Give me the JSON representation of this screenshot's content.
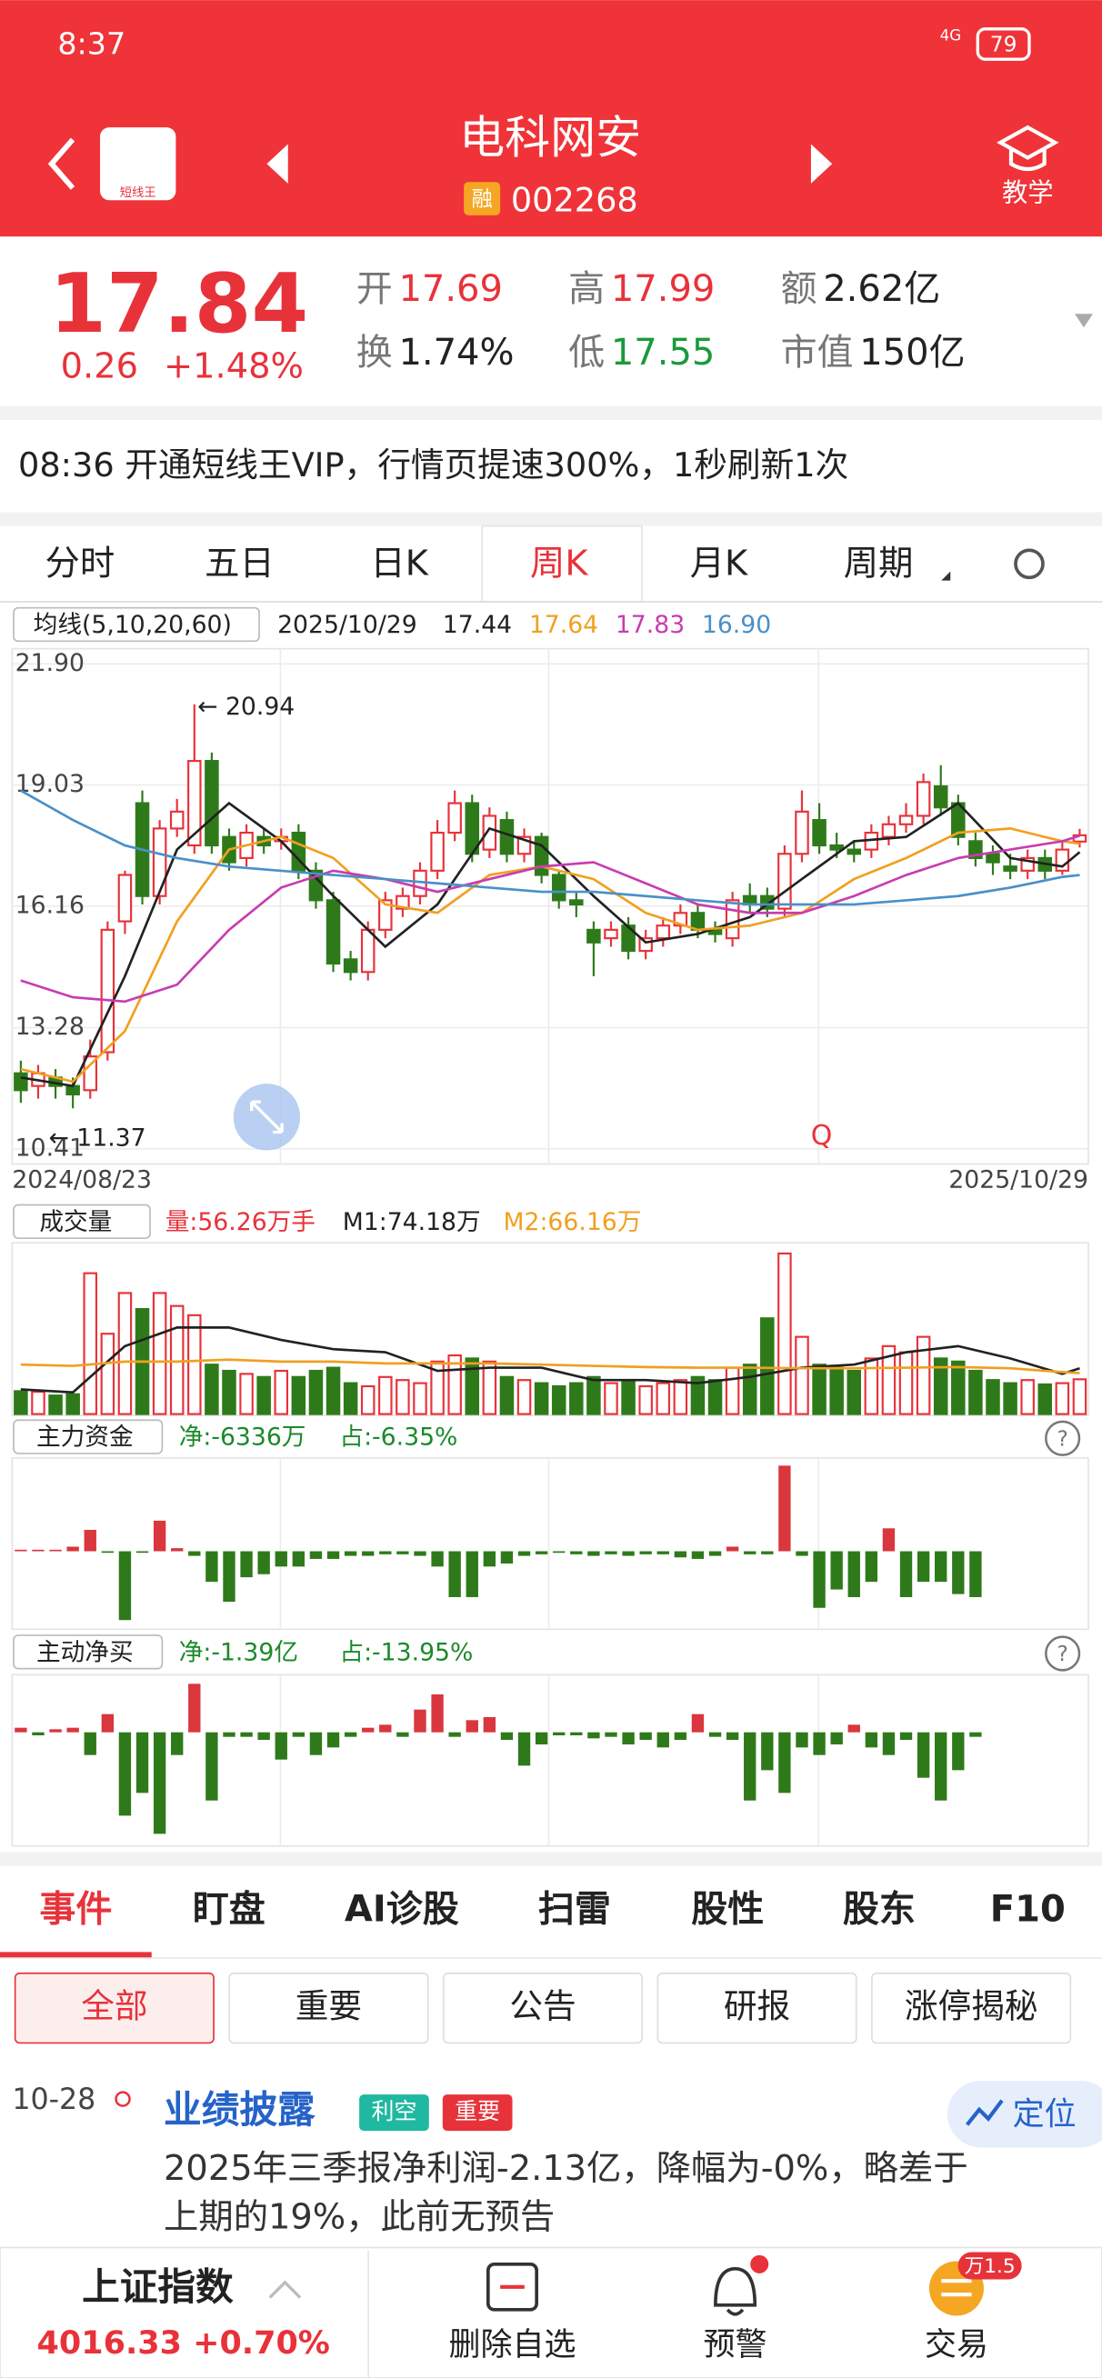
{
  "status_bar": {
    "time": "8:37",
    "network": "4G",
    "battery": "79"
  },
  "header": {
    "logo_text": "短线王",
    "title": "电科网安",
    "badge": "融",
    "code": "002268",
    "teach": "教学"
  },
  "quote": {
    "price": "17.84",
    "change": "0.26",
    "pct": "+1.48%",
    "fields": [
      {
        "label": "开",
        "value": "17.69",
        "color": "#e8323a"
      },
      {
        "label": "高",
        "value": "17.99",
        "color": "#e8323a"
      },
      {
        "label": "额",
        "value": "2.62亿",
        "color": "#222"
      },
      {
        "label": "换",
        "value": "1.74%",
        "color": "#222"
      },
      {
        "label": "低",
        "value": "17.55",
        "color": "#1a9a3a"
      },
      {
        "label": "市值",
        "value": "150亿",
        "color": "#222"
      }
    ]
  },
  "banner": "08:36 开通短线王VIP，行情页提速300%，1秒刷新1次",
  "chart_tabs": [
    "分时",
    "五日",
    "日K",
    "周K",
    "月K",
    "周期"
  ],
  "active_tab": 3,
  "kline": {
    "type": "candlestick",
    "ma_label": "均线(5,10,20,60)",
    "date": "2025/10/29",
    "ma_readout": [
      {
        "text": "17.44",
        "color": "#222"
      },
      {
        "text": "17.64",
        "color": "#f0a020"
      },
      {
        "text": "17.83",
        "color": "#c83cb0"
      },
      {
        "text": "16.90",
        "color": "#4a90c8"
      }
    ],
    "ylim": [
      10.41,
      21.9
    ],
    "yticks": [
      10.41,
      13.28,
      16.16,
      19.03,
      {
        "value": 21.9,
        "label": "21.90"
      }
    ],
    "x_start": "2024/08/23",
    "x_end": "2025/10/29",
    "high_label": "20.94",
    "high_index": 10,
    "low_label": "11.37",
    "low_index": 3,
    "marker": "Q",
    "open": [
      12.2,
      11.9,
      12.1,
      11.9,
      11.8,
      12.7,
      15.8,
      18.6,
      16.4,
      18.0,
      17.6,
      19.6,
      17.8,
      17.3,
      17.8,
      17.7,
      17.9,
      17.0,
      16.3,
      14.9,
      14.6,
      15.6,
      16.1,
      16.4,
      17.0,
      17.9,
      18.6,
      17.5,
      18.2,
      17.4,
      17.8,
      16.9,
      16.3,
      15.6,
      15.4,
      15.7,
      15.1,
      15.4,
      15.7,
      16.0,
      15.6,
      15.4,
      16.4,
      16.4,
      16.1,
      17.4,
      18.2,
      17.6,
      17.5,
      17.5,
      17.8,
      18.1,
      18.3,
      19.0,
      18.6,
      17.7,
      17.4,
      17.1,
      17.0,
      17.3,
      17.0,
      17.69
    ],
    "close": [
      11.8,
      12.2,
      11.9,
      11.7,
      12.6,
      15.6,
      16.9,
      16.4,
      18.0,
      18.4,
      19.6,
      17.6,
      17.2,
      17.9,
      17.6,
      17.8,
      17.0,
      16.3,
      14.8,
      14.6,
      15.6,
      16.3,
      16.4,
      17.0,
      17.9,
      18.6,
      17.4,
      18.3,
      17.4,
      17.8,
      16.9,
      16.3,
      16.2,
      15.3,
      15.6,
      15.1,
      15.4,
      15.7,
      16.0,
      15.6,
      15.5,
      16.3,
      16.2,
      16.1,
      17.4,
      18.4,
      17.6,
      17.5,
      17.4,
      17.9,
      18.1,
      18.3,
      19.1,
      18.5,
      17.8,
      17.3,
      17.2,
      17.0,
      17.3,
      17.0,
      17.5,
      17.84
    ],
    "high": [
      12.5,
      12.4,
      12.3,
      12.1,
      13.0,
      15.8,
      17.0,
      18.9,
      18.2,
      18.7,
      20.94,
      19.8,
      18.0,
      18.1,
      18.0,
      18.0,
      18.1,
      17.2,
      16.5,
      15.1,
      15.8,
      16.5,
      16.6,
      17.2,
      18.2,
      18.9,
      18.8,
      18.5,
      18.4,
      18.0,
      17.9,
      17.0,
      16.5,
      15.8,
      15.8,
      15.9,
      15.6,
      15.9,
      16.2,
      16.2,
      15.8,
      16.5,
      16.7,
      16.6,
      17.6,
      18.9,
      18.6,
      17.9,
      17.7,
      18.1,
      18.3,
      18.6,
      19.3,
      19.5,
      18.8,
      17.9,
      17.6,
      17.4,
      17.5,
      17.5,
      17.7,
      17.99
    ],
    "low": [
      11.5,
      11.6,
      11.6,
      11.37,
      11.6,
      12.5,
      15.5,
      16.2,
      16.2,
      17.8,
      17.4,
      17.4,
      17.0,
      17.1,
      17.4,
      17.5,
      16.8,
      16.1,
      14.6,
      14.4,
      14.4,
      15.4,
      15.9,
      16.2,
      16.8,
      17.7,
      17.2,
      17.3,
      17.2,
      17.2,
      16.7,
      16.1,
      15.9,
      14.5,
      15.2,
      14.9,
      14.9,
      15.2,
      15.5,
      15.4,
      15.3,
      15.2,
      16.0,
      15.9,
      15.9,
      17.2,
      17.4,
      17.3,
      17.2,
      17.3,
      17.6,
      17.9,
      18.1,
      18.3,
      17.6,
      17.1,
      16.9,
      16.8,
      16.8,
      16.8,
      16.9,
      17.55
    ],
    "ma_weeks": [
      0,
      3,
      6,
      9,
      12,
      15,
      18,
      21,
      24,
      27,
      30,
      33,
      36,
      39,
      42,
      45,
      48,
      51,
      54,
      57,
      60,
      61
    ],
    "ma_series": [
      {
        "name": "MA5",
        "color": "#222",
        "values": [
          12.1,
          11.9,
          14.5,
          17.5,
          18.6,
          17.7,
          16.4,
          15.2,
          16.2,
          18.0,
          17.6,
          16.4,
          15.3,
          15.5,
          15.9,
          16.8,
          17.7,
          17.8,
          18.6,
          17.3,
          17.1,
          17.44
        ]
      },
      {
        "name": "MA10",
        "color": "#f0a020",
        "values": [
          12.3,
          12.0,
          13.2,
          15.8,
          17.5,
          17.8,
          17.3,
          16.2,
          16.0,
          16.9,
          17.1,
          16.8,
          16.0,
          15.6,
          15.7,
          16.0,
          16.8,
          17.3,
          17.9,
          18.0,
          17.7,
          17.64
        ]
      },
      {
        "name": "MA20",
        "color": "#c83cb0",
        "values": [
          14.4,
          14.0,
          13.9,
          14.3,
          15.6,
          16.6,
          17.0,
          16.8,
          16.5,
          16.8,
          17.1,
          17.2,
          16.7,
          16.2,
          16.0,
          16.0,
          16.4,
          16.9,
          17.3,
          17.5,
          17.7,
          17.83
        ]
      },
      {
        "name": "MA60",
        "color": "#4a90c8",
        "values": [
          18.9,
          18.2,
          17.6,
          17.3,
          17.1,
          17.0,
          16.9,
          16.8,
          16.7,
          16.6,
          16.5,
          16.5,
          16.4,
          16.3,
          16.2,
          16.2,
          16.2,
          16.3,
          16.4,
          16.6,
          16.85,
          16.9
        ]
      }
    ]
  },
  "volume": {
    "type": "bar",
    "title": "成交量",
    "vol_label": "量:56.26万手",
    "m1_label": "M1:74.18万",
    "m2_label": "M2:66.16万",
    "ylim": [
      0,
      265
    ],
    "values": [
      37,
      36,
      30,
      32,
      228,
      130,
      196,
      170,
      196,
      175,
      160,
      80,
      70,
      65,
      60,
      70,
      60,
      70,
      75,
      50,
      45,
      60,
      55,
      50,
      85,
      95,
      90,
      85,
      60,
      55,
      50,
      45,
      50,
      60,
      50,
      55,
      45,
      50,
      55,
      60,
      55,
      75,
      80,
      155,
      260,
      125,
      80,
      75,
      70,
      90,
      110,
      100,
      125,
      90,
      85,
      70,
      55,
      50,
      55,
      48,
      50,
      56.26
    ],
    "lines": [
      {
        "name": "M1",
        "color": "#222",
        "values": [
          40,
          35,
          110,
          140,
          140,
          120,
          105,
          100,
          70,
          75,
          75,
          55,
          55,
          50,
          60,
          75,
          80,
          100,
          110,
          90,
          65,
          74.18
        ]
      },
      {
        "name": "M2",
        "color": "#f0a020",
        "values": [
          80,
          78,
          85,
          85,
          88,
          85,
          85,
          82,
          82,
          82,
          80,
          78,
          76,
          75,
          75,
          74,
          74,
          75,
          76,
          74,
          68,
          66.16
        ]
      }
    ]
  },
  "main_fund": {
    "type": "bar",
    "title": "主力资金",
    "net": "净:-6336万",
    "ratio": "占:-6.35%",
    "ylim": [
      -51000,
      61000
    ],
    "values": [
      1000,
      1000,
      1000,
      3000,
      14000,
      -1000,
      -45000,
      -1000,
      20000,
      2000,
      -3000,
      -20000,
      -33000,
      -17000,
      -15000,
      -10000,
      -10000,
      -5000,
      -5000,
      -3000,
      -3000,
      -2000,
      -2000,
      -3000,
      -10000,
      -30000,
      -30000,
      -10000,
      -8000,
      -3000,
      -2000,
      -1000,
      -2000,
      -3000,
      -2000,
      -3000,
      -2000,
      -2000,
      -4000,
      -5000,
      -3000,
      3000,
      -2000,
      -2000,
      56000,
      -3000,
      -37000,
      -25000,
      -30000,
      -20000,
      15000,
      -30000,
      -20000,
      -20000,
      -28000,
      -30000
    ]
  },
  "active_buy": {
    "type": "bar",
    "title": "主动净买",
    "net": "净:-1.39亿",
    "ratio": "占:-13.95%",
    "ylim": [
      -75000,
      38000
    ],
    "values": [
      3000,
      -2000,
      2000,
      3000,
      -15000,
      12000,
      -55000,
      -40000,
      -67000,
      -15000,
      32000,
      -45000,
      -3000,
      -3000,
      -5000,
      -18000,
      -3000,
      -15000,
      -10000,
      -3000,
      3000,
      5000,
      -3000,
      15000,
      25000,
      -3000,
      8000,
      10000,
      -5000,
      -22000,
      -8000,
      -2000,
      -2000,
      -4000,
      -3000,
      -8000,
      -5000,
      -10000,
      -5000,
      12000,
      -3000,
      -5000,
      -45000,
      -25000,
      -40000,
      -10000,
      -15000,
      -8000,
      5000,
      -10000,
      -15000,
      -5000,
      -30000,
      -45000,
      -25000,
      -3000
    ]
  },
  "bottom_tabs": [
    "事件",
    "盯盘",
    "AI诊股",
    "扫雷",
    "股性",
    "股东",
    "F10"
  ],
  "filters": [
    "全部",
    "重要",
    "公告",
    "研报",
    "涨停揭秘"
  ],
  "event": {
    "date": "10-28",
    "title": "业绩披露",
    "tags": [
      "利空",
      "重要"
    ],
    "line1": "2025年三季报净利润-2.13亿，降幅为-0%，略差于",
    "line2": "上期的19%，此前无预告",
    "locate": "定位"
  },
  "nav": {
    "index_name": "上证指数",
    "index_value": "4016.33 +0.70%",
    "items": [
      "删除自选",
      "预警",
      "交易"
    ],
    "badge": "万1.5"
  }
}
